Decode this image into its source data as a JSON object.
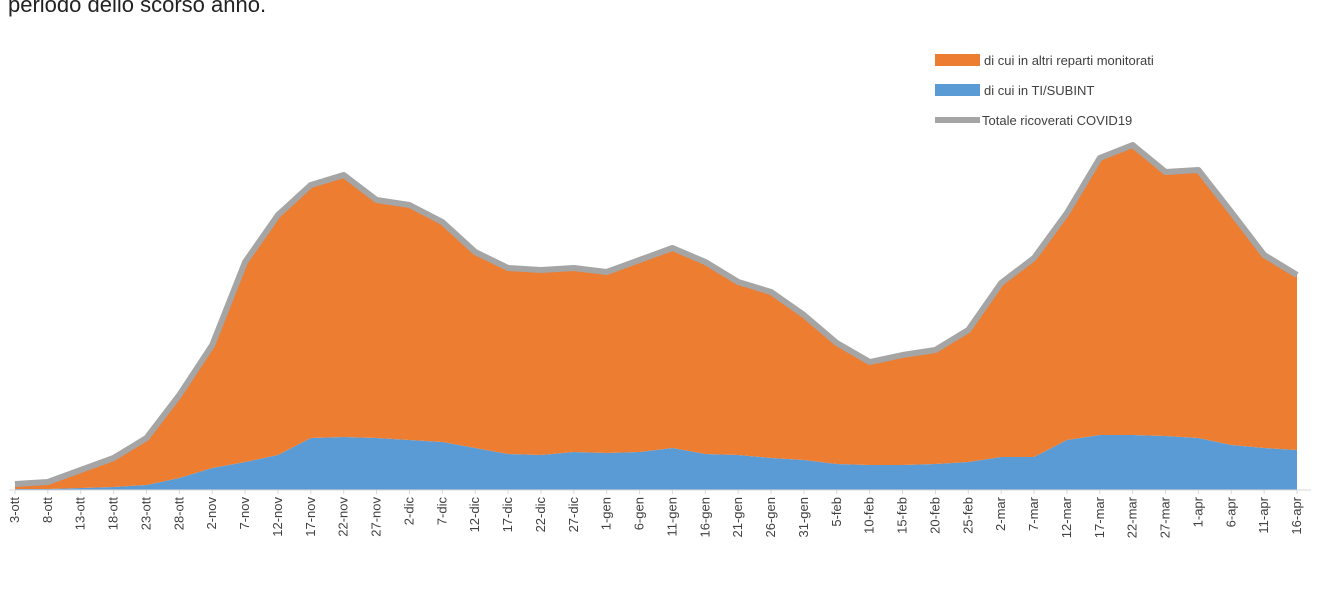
{
  "chart_data": {
    "type": "stacked-area",
    "caption": "periodo dello scorso anno.",
    "categories": [
      "3-ott",
      "8-ott",
      "13-ott",
      "18-ott",
      "23-ott",
      "28-ott",
      "2-nov",
      "7-nov",
      "12-nov",
      "17-nov",
      "22-nov",
      "27-nov",
      "2-dic",
      "7-dic",
      "12-dic",
      "17-dic",
      "22-dic",
      "27-dic",
      "1-gen",
      "6-gen",
      "11-gen",
      "16-gen",
      "21-gen",
      "26-gen",
      "31-gen",
      "5-feb",
      "10-feb",
      "15-feb",
      "20-feb",
      "25-feb",
      "2-mar",
      "7-mar",
      "12-mar",
      "17-mar",
      "22-mar",
      "27-mar",
      "1-apr",
      "6-apr",
      "11-apr",
      "16-apr"
    ],
    "series": [
      {
        "name": "di cui in altri reparti monitorati",
        "color": "#ed7d31",
        "kind": "area",
        "values": [
          5,
          7,
          18,
          29,
          47,
          83,
          123,
          200,
          240,
          253,
          262,
          238,
          235,
          220,
          196,
          186,
          185,
          184,
          181,
          192,
          200,
          192,
          173,
          166,
          145,
          121,
          103,
          110,
          114,
          132,
          174,
          199,
          227,
          277,
          290,
          264,
          268,
          233,
          193,
          175
        ]
      },
      {
        "name": "di cui in TI/SUBINT",
        "color": "#5b9bd5",
        "kind": "area",
        "values": [
          1,
          1,
          2,
          3,
          5,
          12,
          22,
          28,
          35,
          52,
          53,
          52,
          50,
          48,
          42,
          36,
          35,
          38,
          37,
          38,
          42,
          36,
          35,
          32,
          30,
          26,
          25,
          25,
          26,
          28,
          33,
          33,
          50,
          55,
          55,
          54,
          52,
          45,
          42,
          40
        ]
      },
      {
        "name": "Totale ricoverati COVID19",
        "color": "#a5a5a5",
        "kind": "line",
        "values": [
          6,
          8,
          20,
          32,
          52,
          95,
          145,
          228,
          275,
          305,
          315,
          290,
          285,
          268,
          238,
          222,
          220,
          222,
          218,
          230,
          242,
          228,
          208,
          198,
          175,
          147,
          128,
          135,
          140,
          160,
          207,
          232,
          277,
          332,
          345,
          318,
          320,
          278,
          235,
          215
        ]
      }
    ],
    "ylim": [
      0,
      350
    ]
  }
}
